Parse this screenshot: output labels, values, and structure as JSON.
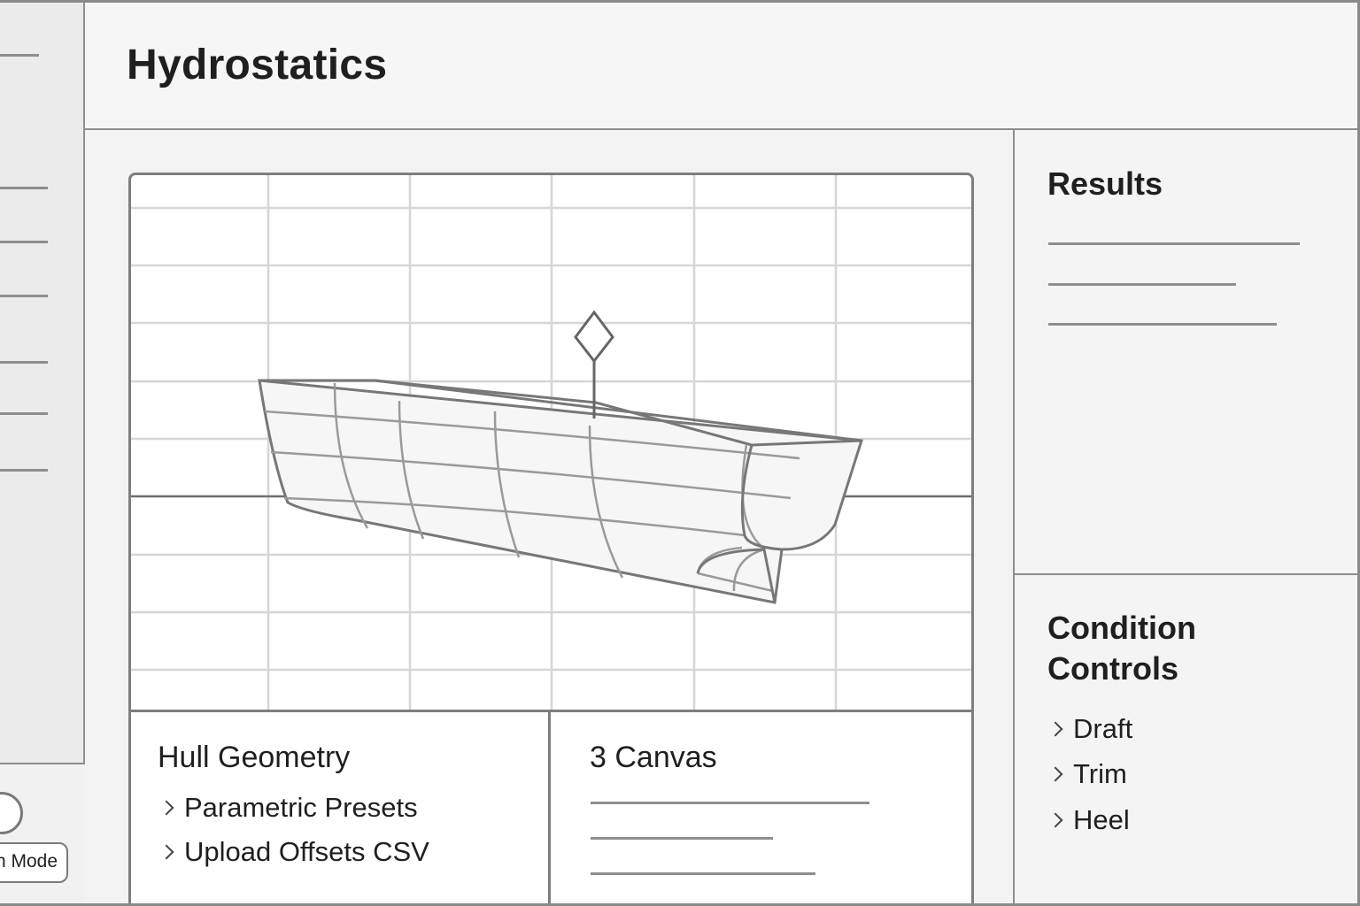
{
  "sidebar": {
    "mode_button_label": "n Mode"
  },
  "header": {
    "title": "Hydrostatics"
  },
  "hull_geometry": {
    "title": "Hull Geometry",
    "items": [
      {
        "label": "Parametric Presets"
      },
      {
        "label": "Upload Offsets CSV"
      }
    ]
  },
  "canvas_panel": {
    "title": "3 Canvas"
  },
  "results": {
    "title": "Results"
  },
  "condition_controls": {
    "title_line1": "Condition",
    "title_line2": "Controls",
    "items": [
      {
        "label": "Draft"
      },
      {
        "label": "Trim"
      },
      {
        "label": "Heel"
      }
    ]
  },
  "icons": {
    "center_of_gravity": "diamond-marker-icon",
    "expand": "chevron-right-icon"
  },
  "colors": {
    "stroke": "#7e7e7e",
    "grid": "#d6d6d6",
    "background": "#f4f4f4"
  }
}
